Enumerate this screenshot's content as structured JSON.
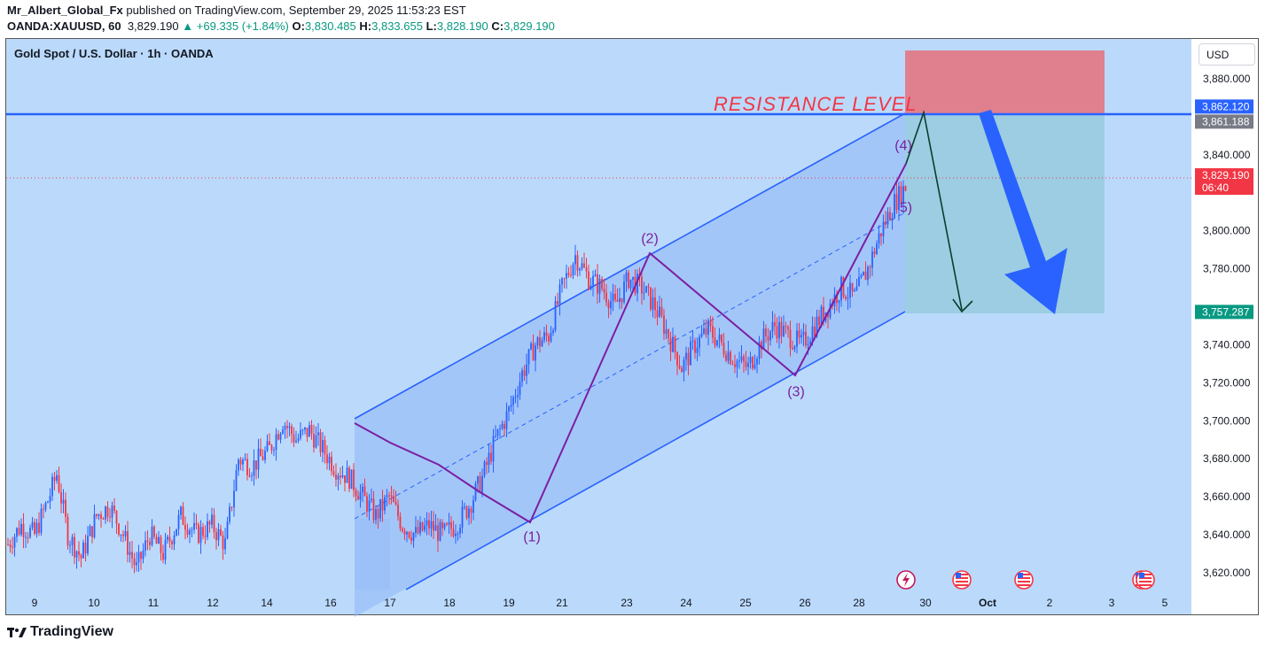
{
  "header": {
    "author": "Mr_Albert_Global_Fx",
    "published": "published on TradingView.com, September 29, 2025 11:53:23 EST",
    "symbol": "OANDA:XAUUSD, 60",
    "last": "3,829.190",
    "change": "+69.335 (+1.84%)",
    "o_label": "O:",
    "o": "3,830.485",
    "h_label": "H:",
    "h": "3,833.655",
    "l_label": "L:",
    "l": "3,828.190",
    "c_label": "C:",
    "c": "3,829.190"
  },
  "chart_title": "Gold Spot / U.S. Dollar · 1h · OANDA",
  "currency_button": "USD",
  "footer": {
    "brand": "TradingView"
  },
  "colors": {
    "background": "#bbdafb",
    "channel": "#2962ff",
    "up": "#2962ff",
    "down": "#f23645",
    "wave": "#7b1fa2",
    "resistance_text": "#f23645",
    "target_zone": "#9ccde3",
    "stop_zone": "#e0808f"
  },
  "chart_data": {
    "type": "candlestick",
    "ylim": [
      3605,
      3895
    ],
    "price_ticks": [
      3880,
      3860,
      3840,
      3820,
      3800,
      3780,
      3760,
      3740,
      3720,
      3700,
      3680,
      3660,
      3640,
      3620
    ],
    "price_tick_labels": [
      "3,880.000",
      "3,860.000",
      "3,840.000",
      "3,820.000",
      "3,800.000",
      "3,780.000",
      "3,760.000",
      "3,740.000",
      "3,720.000",
      "3,700.000",
      "3,680.000",
      "3,660.000",
      "3,640.000",
      "3,620.000"
    ],
    "x_labels": [
      "9",
      "10",
      "11",
      "12",
      "14",
      "16",
      "17",
      "18",
      "19",
      "21",
      "23",
      "24",
      "25",
      "26",
      "28",
      "30",
      "Oct",
      "2",
      "3",
      "5"
    ],
    "price_labels": [
      {
        "value": 3862.12,
        "text": "3,862.120",
        "color": "#2962ff"
      },
      {
        "value": 3861.188,
        "text": "3,861.188",
        "color": "#787b86"
      },
      {
        "value": 3829.19,
        "text": "3,829.190",
        "sub": "06:40",
        "color": "#f23645"
      },
      {
        "value": 3757.287,
        "text": "3,757.287",
        "color": "#089981"
      }
    ],
    "resistance": {
      "value": 3861.188,
      "label": "RESISTANCE LEVEL"
    },
    "waves": [
      {
        "label": "(1)",
        "value": 3645
      },
      {
        "label": "(2)",
        "value": 3787
      },
      {
        "label": "(3)",
        "value": 3725
      },
      {
        "label": "(4)",
        "value": 3836
      },
      {
        "label": "5)",
        "value": 3822
      }
    ],
    "trade_box": {
      "entry": 3861.188,
      "stop": 3893,
      "target": 3757.287
    },
    "path_points": [
      [
        0,
        3635
      ],
      [
        6,
        3645
      ],
      [
        12,
        3640
      ],
      [
        18,
        3658
      ],
      [
        22,
        3672
      ],
      [
        27,
        3640
      ],
      [
        33,
        3628
      ],
      [
        40,
        3650
      ],
      [
        46,
        3655
      ],
      [
        52,
        3640
      ],
      [
        58,
        3622
      ],
      [
        64,
        3640
      ],
      [
        70,
        3630
      ],
      [
        78,
        3650
      ],
      [
        85,
        3640
      ],
      [
        92,
        3645
      ],
      [
        98,
        3635
      ],
      [
        104,
        3680
      ],
      [
        110,
        3676
      ],
      [
        118,
        3685
      ],
      [
        124,
        3700
      ],
      [
        130,
        3690
      ],
      [
        136,
        3695
      ],
      [
        142,
        3685
      ],
      [
        148,
        3675
      ],
      [
        154,
        3670
      ],
      [
        160,
        3660
      ],
      [
        166,
        3650
      ],
      [
        172,
        3660
      ],
      [
        178,
        3645
      ],
      [
        184,
        3640
      ],
      [
        190,
        3645
      ],
      [
        196,
        3640
      ],
      [
        202,
        3645
      ],
      [
        208,
        3655
      ],
      [
        214,
        3670
      ],
      [
        220,
        3690
      ],
      [
        226,
        3705
      ],
      [
        232,
        3725
      ],
      [
        238,
        3740
      ],
      [
        244,
        3745
      ],
      [
        250,
        3770
      ],
      [
        256,
        3787
      ],
      [
        262,
        3775
      ],
      [
        268,
        3770
      ],
      [
        274,
        3760
      ],
      [
        280,
        3775
      ],
      [
        286,
        3770
      ],
      [
        292,
        3760
      ],
      [
        298,
        3745
      ],
      [
        304,
        3728
      ],
      [
        310,
        3740
      ],
      [
        316,
        3748
      ],
      [
        322,
        3740
      ],
      [
        328,
        3732
      ],
      [
        334,
        3728
      ],
      [
        340,
        3742
      ],
      [
        346,
        3750
      ],
      [
        352,
        3745
      ],
      [
        358,
        3740
      ],
      [
        364,
        3750
      ],
      [
        370,
        3760
      ],
      [
        376,
        3770
      ],
      [
        382,
        3765
      ],
      [
        388,
        3780
      ],
      [
        394,
        3800
      ],
      [
        400,
        3815
      ],
      [
        406,
        3825
      ],
      [
        410,
        3829
      ]
    ]
  }
}
